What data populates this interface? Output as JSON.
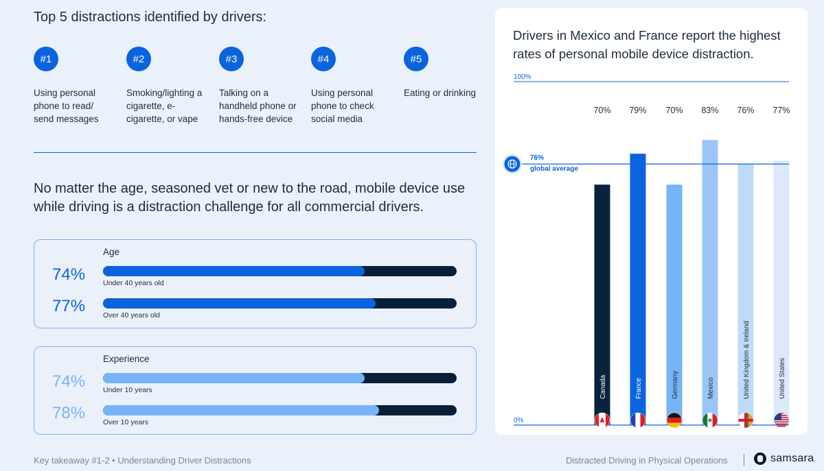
{
  "heading": "Top 5 distractions identified by drivers:",
  "distractions": [
    {
      "rank": "#1",
      "text": "Using personal phone to read/ send messages"
    },
    {
      "rank": "#2",
      "text": "Smoking/lighting a cigarette, e-cigarette, or vape"
    },
    {
      "rank": "#3",
      "text": "Talking on a handheld phone or hands-free device"
    },
    {
      "rank": "#4",
      "text": "Using personal phone to check social media"
    },
    {
      "rank": "#5",
      "text": "Eating or drinking"
    }
  ],
  "statement": "No matter the age, seasoned vet or new to the road, mobile device use while driving is a distraction challenge for all commercial drivers.",
  "age": {
    "title": "Age",
    "rows": [
      {
        "pct": "74%",
        "value": 74,
        "label": "Under 40 years old"
      },
      {
        "pct": "77%",
        "value": 77,
        "label": "Over 40 years old"
      }
    ]
  },
  "experience": {
    "title": "Experience",
    "rows": [
      {
        "pct": "74%",
        "value": 74,
        "label": "Under 10 years"
      },
      {
        "pct": "78%",
        "value": 78,
        "label": "Over 10 years"
      }
    ]
  },
  "colors": {
    "accent": "#0b63dd",
    "light_accent": "#76b4f6",
    "track": "#071f38"
  },
  "footer": {
    "left": "Key takeaway #1-2 • Understanding Driver Distractions",
    "right": "Distracted Driving in Physical Operations",
    "brand": "samsara"
  },
  "chart_data": {
    "type": "bar",
    "title": "Drivers in Mexico and France report the highest rates of personal mobile device distraction.",
    "categories": [
      "Canada",
      "France",
      "Germany",
      "Mexico",
      "United Kingdom & Ireland",
      "United States"
    ],
    "values": [
      70,
      79,
      70,
      83,
      76,
      77
    ],
    "value_labels": [
      "70%",
      "79%",
      "70%",
      "83%",
      "76%",
      "77%"
    ],
    "bar_colors": [
      "#08233d",
      "#0b63dd",
      "#76b4f6",
      "#9ac5f7",
      "#c0dafa",
      "#dce9fb"
    ],
    "flag_icons": [
      "canada-flag-icon",
      "france-flag-icon",
      "germany-flag-icon",
      "mexico-flag-icon",
      "uk-ireland-flag-icon",
      "usa-flag-icon"
    ],
    "ylim": [
      0,
      100
    ],
    "y_top_label": "100%",
    "y_bottom_label": "0%",
    "reference_line": {
      "value": 76,
      "label_value": "76%",
      "label_text": "global average",
      "icon": "globe-icon"
    }
  }
}
